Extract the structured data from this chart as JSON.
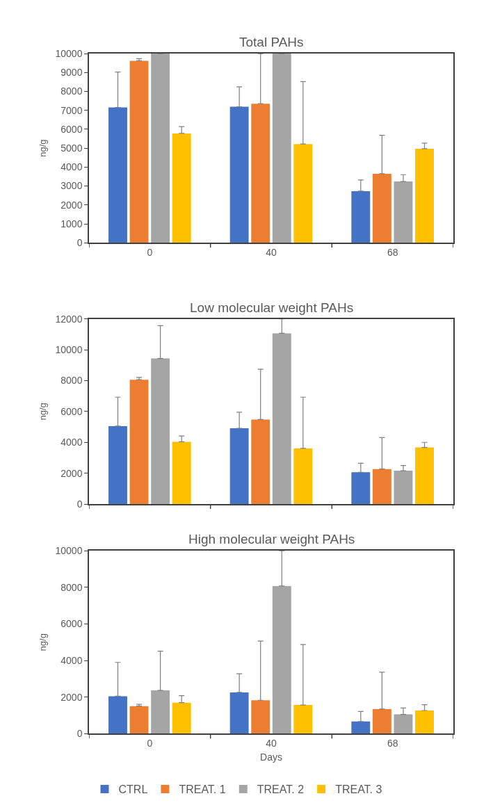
{
  "chart_data": [
    {
      "type": "bar",
      "title": "Total PAHs",
      "ylabel": "ng/g",
      "categories": [
        "0",
        "40",
        "68"
      ],
      "ylim": [
        0,
        10000
      ],
      "yticks": [
        0,
        1000,
        2000,
        3000,
        4000,
        5000,
        6000,
        7000,
        8000,
        9000,
        10000
      ],
      "grid": false,
      "legend": "bottom",
      "series": [
        {
          "name": "CTRL",
          "color": "#4472c4",
          "values": [
            7150,
            7190,
            2730
          ],
          "errors": [
            [
              7150,
              9020
            ],
            [
              7190,
              8240
            ],
            [
              2730,
              3320
            ]
          ]
        },
        {
          "name": "TREAT. 1",
          "color": "#ed7d31",
          "values": [
            9620,
            7350,
            3650
          ],
          "errors": [
            [
              9620,
              9730
            ],
            [
              7350,
              10000
            ],
            [
              3650,
              5680
            ]
          ]
        },
        {
          "name": "TREAT. 2",
          "color": "#a5a5a5",
          "values": [
            10000,
            10000,
            3240
          ],
          "errors": [
            null,
            null,
            [
              3240,
              3600
            ]
          ]
        },
        {
          "name": "TREAT. 3",
          "color": "#ffc000",
          "values": [
            5780,
            5220,
            4970
          ],
          "errors": [
            [
              5780,
              6140
            ],
            [
              5220,
              8520
            ],
            [
              4970,
              5270
            ]
          ]
        }
      ]
    },
    {
      "type": "bar",
      "title": "Low molecular weight PAHs",
      "ylabel": "ng/g",
      "categories": [
        "0",
        "40",
        "68"
      ],
      "ylim": [
        0,
        12000
      ],
      "yticks": [
        0,
        2000,
        4000,
        6000,
        8000,
        10000,
        12000
      ],
      "grid": false,
      "tick_labels": "y",
      "series": [
        {
          "color": "#4472c4",
          "values": [
            5050,
            4910,
            2060
          ],
          "errors": [
            [
              5050,
              6930
            ],
            [
              4910,
              5960
            ],
            [
              2060,
              2640
            ]
          ]
        },
        {
          "color": "#ed7d31",
          "values": [
            8060,
            5480,
            2270
          ],
          "errors": [
            [
              8060,
              8210
            ],
            [
              5480,
              8740
            ],
            [
              2270,
              4310
            ]
          ]
        },
        {
          "color": "#a5a5a5",
          "values": [
            9440,
            11070,
            2160
          ],
          "errors": [
            [
              9440,
              11570
            ],
            [
              11070,
              12000
            ],
            [
              2160,
              2500
            ]
          ]
        },
        {
          "color": "#ffc000",
          "values": [
            4040,
            3610,
            3670
          ],
          "errors": [
            [
              4040,
              4410
            ],
            [
              3610,
              6930
            ],
            [
              3670,
              4000
            ]
          ]
        }
      ]
    },
    {
      "type": "bar",
      "title": "High molecular weight PAHs",
      "xlabel": "Days",
      "ylabel": "ng/g",
      "categories": [
        "0",
        "40",
        "68"
      ],
      "ylim": [
        0,
        10000
      ],
      "yticks": [
        0,
        2000,
        4000,
        6000,
        8000,
        10000
      ],
      "grid": false,
      "series": [
        {
          "color": "#4472c4",
          "values": [
            2050,
            2260,
            670
          ],
          "errors": [
            [
              2050,
              3900
            ],
            [
              2260,
              3280
            ],
            [
              670,
              1220
            ]
          ]
        },
        {
          "color": "#ed7d31",
          "values": [
            1510,
            1830,
            1350
          ],
          "errors": [
            [
              1510,
              1610
            ],
            [
              1830,
              5060
            ],
            [
              1350,
              3360
            ]
          ]
        },
        {
          "color": "#a5a5a5",
          "values": [
            2370,
            8070,
            1060
          ],
          "errors": [
            [
              2370,
              4510
            ],
            [
              8070,
              10000
            ],
            [
              1060,
              1410
            ]
          ]
        },
        {
          "color": "#ffc000",
          "values": [
            1700,
            1570,
            1270
          ],
          "errors": [
            [
              1700,
              2080
            ],
            [
              1570,
              4870
            ],
            [
              1270,
              1590
            ]
          ]
        }
      ]
    }
  ]
}
